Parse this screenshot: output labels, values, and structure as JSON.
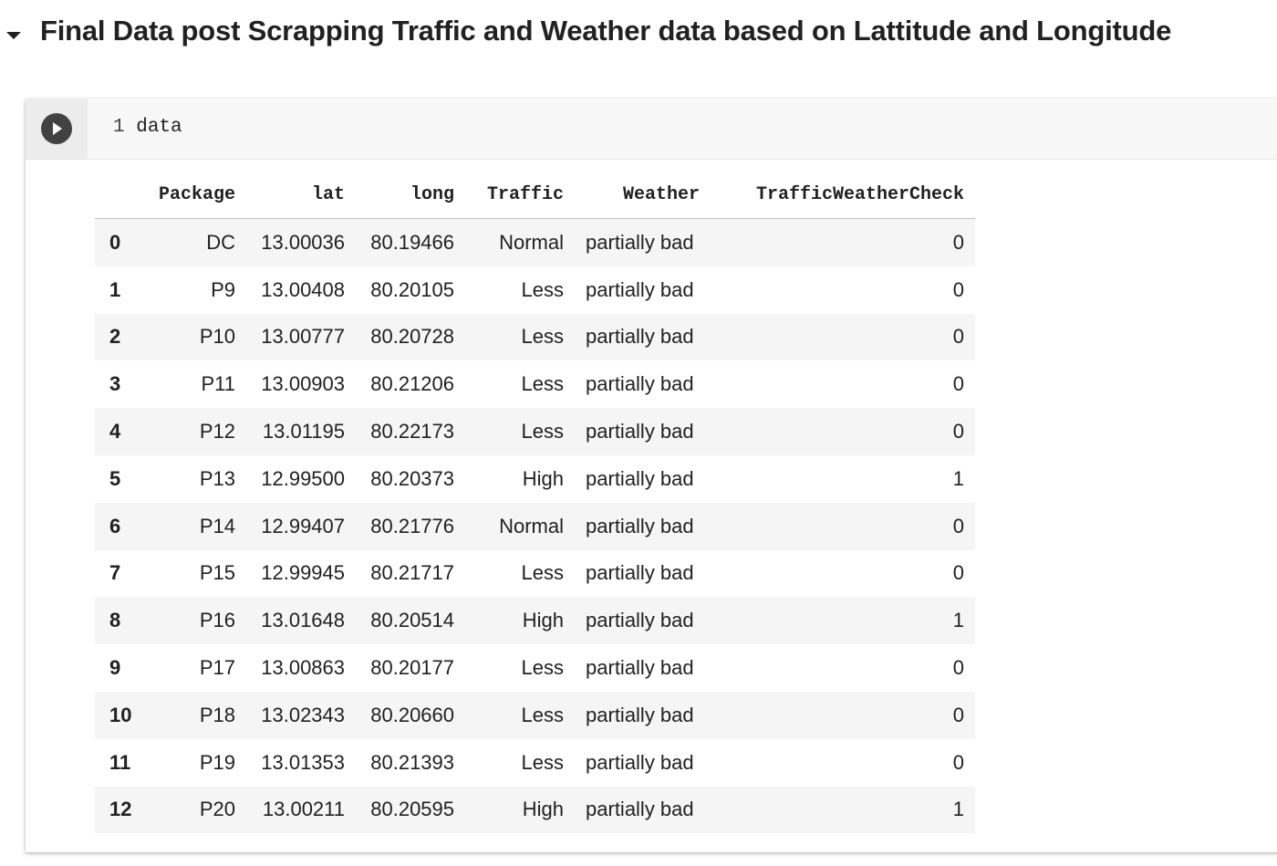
{
  "section": {
    "title": "Final Data post Scrapping Traffic and Weather data based on Lattitude and Longitude"
  },
  "cell": {
    "line_number": "1",
    "code": "data"
  },
  "table": {
    "columns": [
      "Package",
      "lat",
      "long",
      "Traffic",
      "Weather",
      "TrafficWeatherCheck"
    ],
    "rows": [
      {
        "index": "0",
        "Package": "DC",
        "lat": "13.00036",
        "long": "80.19466",
        "Traffic": "Normal",
        "Weather": "partially bad",
        "TrafficWeatherCheck": "0"
      },
      {
        "index": "1",
        "Package": "P9",
        "lat": "13.00408",
        "long": "80.20105",
        "Traffic": "Less",
        "Weather": "partially bad",
        "TrafficWeatherCheck": "0"
      },
      {
        "index": "2",
        "Package": "P10",
        "lat": "13.00777",
        "long": "80.20728",
        "Traffic": "Less",
        "Weather": "partially bad",
        "TrafficWeatherCheck": "0"
      },
      {
        "index": "3",
        "Package": "P11",
        "lat": "13.00903",
        "long": "80.21206",
        "Traffic": "Less",
        "Weather": "partially bad",
        "TrafficWeatherCheck": "0"
      },
      {
        "index": "4",
        "Package": "P12",
        "lat": "13.01195",
        "long": "80.22173",
        "Traffic": "Less",
        "Weather": "partially bad",
        "TrafficWeatherCheck": "0"
      },
      {
        "index": "5",
        "Package": "P13",
        "lat": "12.99500",
        "long": "80.20373",
        "Traffic": "High",
        "Weather": "partially bad",
        "TrafficWeatherCheck": "1"
      },
      {
        "index": "6",
        "Package": "P14",
        "lat": "12.99407",
        "long": "80.21776",
        "Traffic": "Normal",
        "Weather": "partially bad",
        "TrafficWeatherCheck": "0"
      },
      {
        "index": "7",
        "Package": "P15",
        "lat": "12.99945",
        "long": "80.21717",
        "Traffic": "Less",
        "Weather": "partially bad",
        "TrafficWeatherCheck": "0"
      },
      {
        "index": "8",
        "Package": "P16",
        "lat": "13.01648",
        "long": "80.20514",
        "Traffic": "High",
        "Weather": "partially bad",
        "TrafficWeatherCheck": "1"
      },
      {
        "index": "9",
        "Package": "P17",
        "lat": "13.00863",
        "long": "80.20177",
        "Traffic": "Less",
        "Weather": "partially bad",
        "TrafficWeatherCheck": "0"
      },
      {
        "index": "10",
        "Package": "P18",
        "lat": "13.02343",
        "long": "80.20660",
        "Traffic": "Less",
        "Weather": "partially bad",
        "TrafficWeatherCheck": "0"
      },
      {
        "index": "11",
        "Package": "P19",
        "lat": "13.01353",
        "long": "80.21393",
        "Traffic": "Less",
        "Weather": "partially bad",
        "TrafficWeatherCheck": "0"
      },
      {
        "index": "12",
        "Package": "P20",
        "lat": "13.00211",
        "long": "80.20595",
        "Traffic": "High",
        "Weather": "partially bad",
        "TrafficWeatherCheck": "1"
      }
    ]
  },
  "icons": {
    "collapse": "caret-down-icon",
    "run": "play-icon"
  },
  "colors": {
    "run_button": "#424242",
    "input_bg": "#f7f7f7",
    "stripe": "#f5f5f5"
  }
}
